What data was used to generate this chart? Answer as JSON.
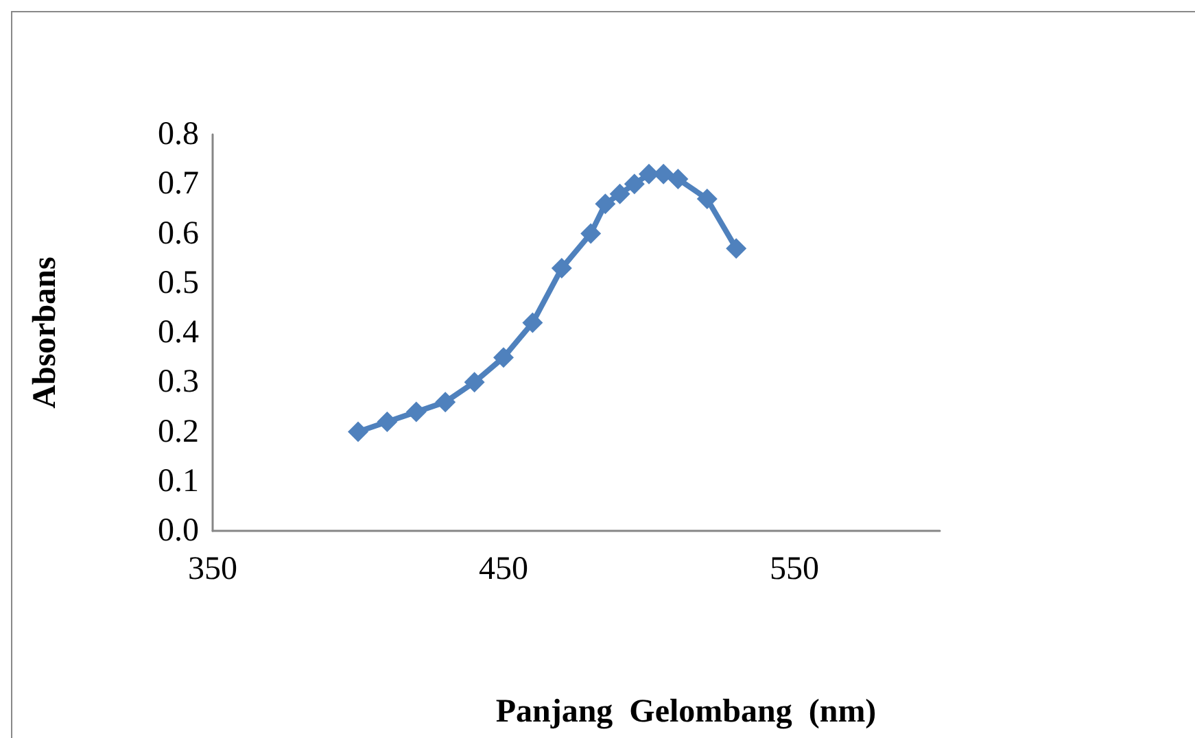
{
  "chart_data": {
    "type": "line",
    "xlabel": "Panjang  Gelombang  (nm)",
    "ylabel": "Absorbans",
    "x": [
      400,
      410,
      420,
      430,
      440,
      450,
      460,
      470,
      480,
      485,
      490,
      495,
      500,
      505,
      510,
      520,
      530
    ],
    "series": [
      {
        "color": "#4f81bd",
        "values": [
          0.2,
          0.22,
          0.24,
          0.26,
          0.3,
          0.35,
          0.42,
          0.53,
          0.6,
          0.66,
          0.68,
          0.7,
          0.72,
          0.72,
          0.71,
          0.67,
          0.57
        ]
      }
    ],
    "xlim": [
      350,
      600
    ],
    "xticks": [
      350,
      450,
      550
    ],
    "ylim": [
      0,
      0.8
    ],
    "yticks": [
      {
        "value": 0,
        "label": "0.0"
      },
      0.1,
      0.2,
      0.3,
      0.4,
      0.5,
      0.6,
      0.7,
      0.8
    ],
    "grid": false,
    "marker": "diamond",
    "line_style": "solid"
  }
}
